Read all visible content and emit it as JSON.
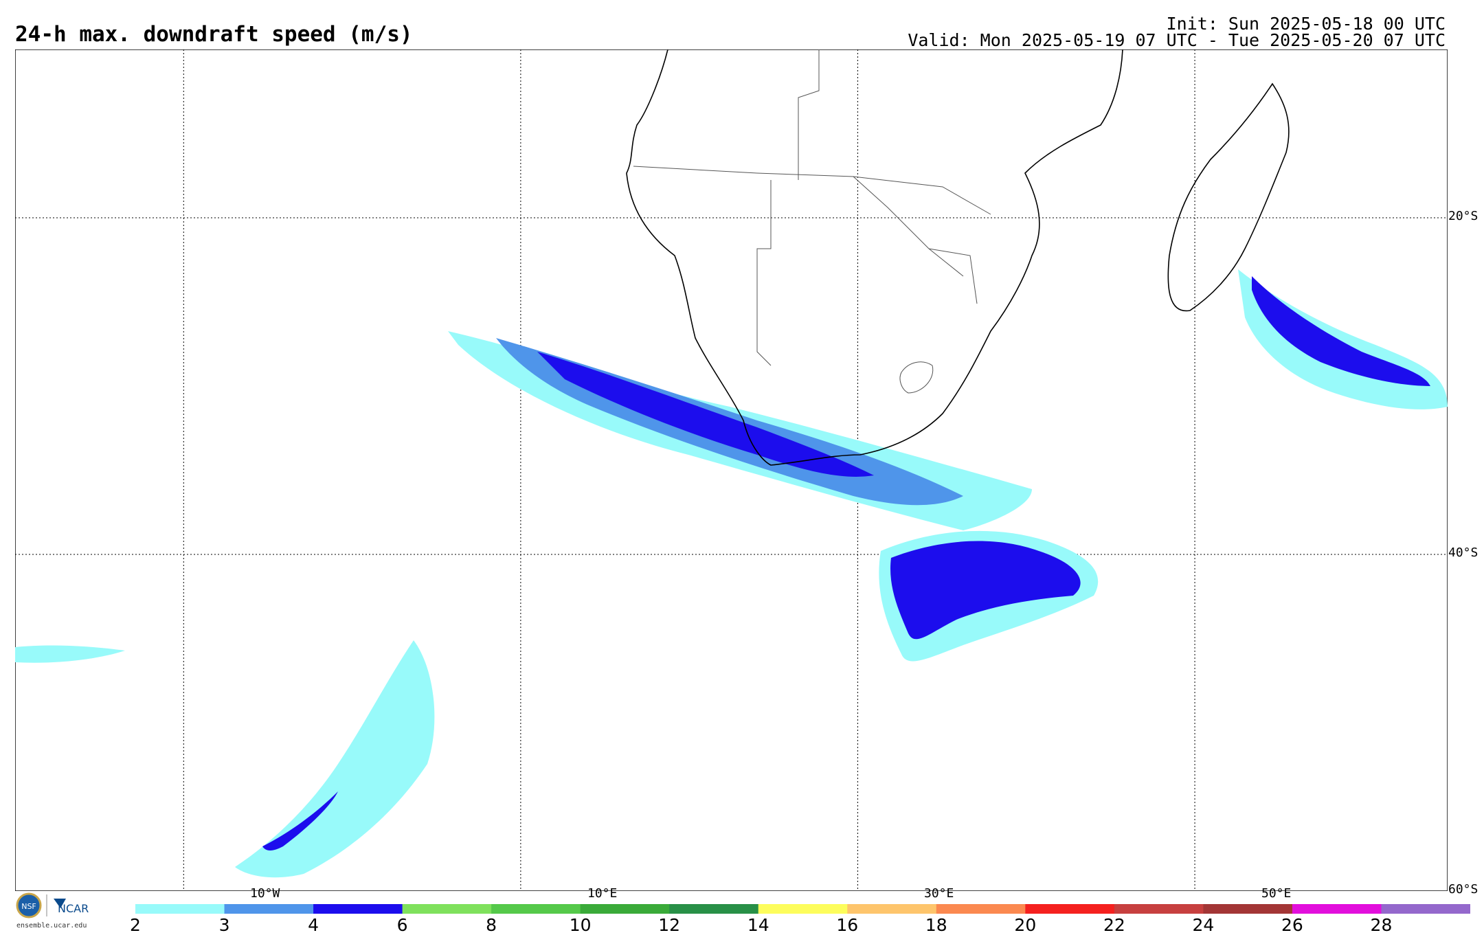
{
  "header": {
    "title": "24-h max. downdraft speed (m/s)",
    "init": "Init: Sun 2025-05-18 00 UTC",
    "valid": "Valid: Mon 2025-05-19 07 UTC - Tue 2025-05-20 07 UTC"
  },
  "map": {
    "lon_range": [
      -20,
      65
    ],
    "lat_range": [
      -10,
      -60
    ],
    "lon_lines": [
      -10,
      10,
      30,
      50
    ],
    "lat_lines": [
      -20,
      -40,
      -60
    ],
    "lon_labels": [
      "10°W",
      "10°E",
      "30°E",
      "50°E"
    ],
    "lat_labels": [
      "20°S",
      "40°S",
      "60°S"
    ]
  },
  "colorbar": {
    "ticks": [
      "2",
      "3",
      "4",
      "6",
      "8",
      "10",
      "12",
      "14",
      "16",
      "18",
      "20",
      "22",
      "24",
      "26",
      "28"
    ],
    "colors": [
      "#98fafa",
      "#4f95ea",
      "#1c0ded",
      "#7fe15c",
      "#55c94a",
      "#3aaa39",
      "#289047",
      "#fdfd5c",
      "#fec56c",
      "#fb8950",
      "#f5211f",
      "#c7403f",
      "#a33636",
      "#e20fdc",
      "#9468cc"
    ]
  },
  "logo": {
    "nsf": "NSF",
    "ncar": "NCAR",
    "url": "ensemble.ucar.edu"
  }
}
